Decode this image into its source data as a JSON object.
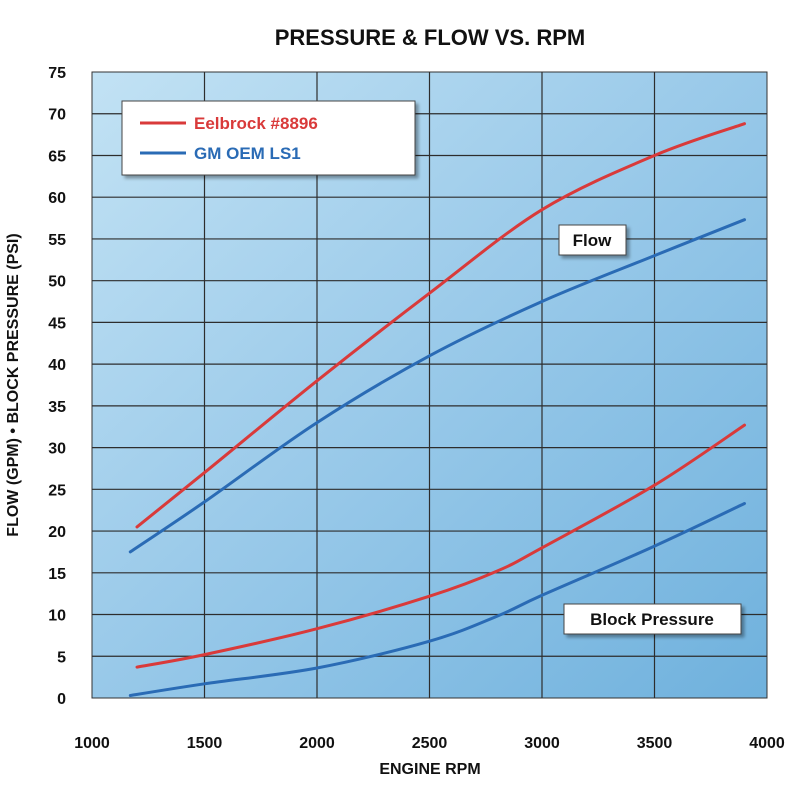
{
  "chart_data": {
    "type": "line",
    "title": "PRESSURE & FLOW VS. RPM",
    "xlabel": "ENGINE RPM",
    "ylabel": "FLOW (GPM) • BLOCK PRESSURE (PSI)",
    "xlim": [
      1000,
      4000
    ],
    "ylim": [
      0,
      75
    ],
    "x_ticks": [
      1000,
      1500,
      2000,
      2500,
      3000,
      3500,
      4000
    ],
    "y_ticks": [
      0,
      5,
      10,
      15,
      20,
      25,
      30,
      35,
      40,
      45,
      50,
      55,
      60,
      65,
      70,
      75
    ],
    "grid": true,
    "legend_position": "top-left",
    "legend": [
      {
        "name": "Eelbrock #8896",
        "color": "#d93a3a"
      },
      {
        "name": "GM OEM LS1",
        "color": "#2a6bb5"
      }
    ],
    "annotations": [
      "Flow",
      "Block Pressure"
    ],
    "series": [
      {
        "name": "Eelbrock #8896",
        "group": "Flow",
        "color": "#d93a3a",
        "x": [
          1200,
          1500,
          2000,
          2500,
          3000,
          3500,
          3900
        ],
        "y": [
          20.5,
          27,
          38,
          48.5,
          58.5,
          65,
          68.8
        ]
      },
      {
        "name": "GM OEM LS1",
        "group": "Flow",
        "color": "#2a6bb5",
        "x": [
          1170,
          1500,
          2000,
          2500,
          3000,
          3500,
          3900
        ],
        "y": [
          17.5,
          23.5,
          33,
          41,
          47.5,
          53,
          57.3
        ]
      },
      {
        "name": "Eelbrock #8896",
        "group": "Block Pressure",
        "color": "#d93a3a",
        "x": [
          1200,
          1500,
          2000,
          2500,
          2800,
          3000,
          3500,
          3900
        ],
        "y": [
          3.7,
          5.2,
          8.3,
          12.2,
          15.2,
          18,
          25.5,
          32.7
        ]
      },
      {
        "name": "GM OEM LS1",
        "group": "Block Pressure",
        "color": "#2a6bb5",
        "x": [
          1170,
          1500,
          2000,
          2500,
          2800,
          3000,
          3500,
          3900
        ],
        "y": [
          0.3,
          1.7,
          3.6,
          6.8,
          9.8,
          12.3,
          18.2,
          23.3
        ]
      }
    ]
  }
}
